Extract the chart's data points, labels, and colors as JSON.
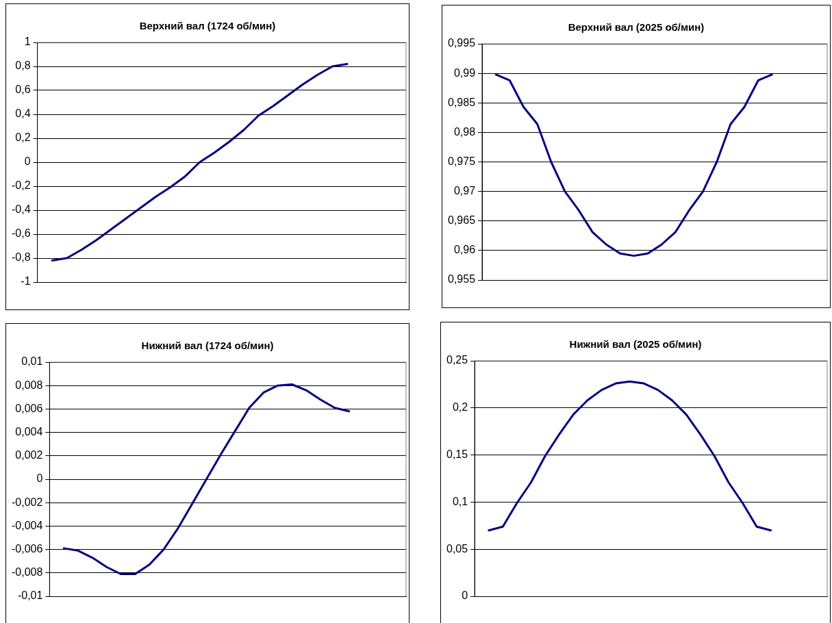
{
  "chart_data": [
    {
      "type": "line",
      "title": "Верхний вал (1724 об/мин)",
      "categories": [
        null,
        null,
        null,
        null,
        null,
        null,
        null,
        null,
        null,
        null,
        null,
        null,
        null,
        null,
        null,
        null,
        null,
        null,
        null,
        null,
        null,
        null,
        null,
        null,
        null,
        null
      ],
      "series": [
        {
          "color": "#000080",
          "values": [
            null,
            -0.82,
            -0.8,
            -0.73,
            -0.65,
            -0.56,
            -0.47,
            -0.38,
            -0.29,
            -0.21,
            -0.12,
            0.0,
            0.08,
            0.17,
            0.27,
            0.39,
            0.47,
            0.56,
            0.65,
            0.73,
            0.8,
            0.82,
            null,
            null,
            null,
            null
          ]
        }
      ],
      "ylim": [
        -1,
        1
      ],
      "yticks": [
        -1,
        {
          "value": -0.8,
          "label": "-0,8"
        },
        {
          "value": -0.6,
          "label": "-0,6"
        },
        {
          "value": -0.4,
          "label": "-0,4"
        },
        {
          "value": -0.2,
          "label": "-0,2"
        },
        0,
        {
          "value": 0.2,
          "label": "0,2"
        },
        {
          "value": 0.4,
          "label": "0,4"
        },
        {
          "value": 0.6,
          "label": "0,6"
        },
        {
          "value": 0.8,
          "label": "0,8"
        },
        1
      ],
      "grid": "y",
      "legend": false,
      "tick_labels": "y",
      "marker": "none",
      "line_style": "solid"
    },
    {
      "type": "line",
      "title": "Верхний вал (2025 об/мин)",
      "categories": [
        null,
        null,
        null,
        null,
        null,
        null,
        null,
        null,
        null,
        null,
        null,
        null,
        null,
        null,
        null,
        null,
        null,
        null,
        null,
        null,
        null,
        null,
        null,
        null,
        null,
        null
      ],
      "series": [
        {
          "color": "#000080",
          "values": [
            null,
            0.9898,
            0.9888,
            0.9843,
            0.9814,
            0.975,
            0.97,
            0.9668,
            0.9631,
            0.961,
            0.9595,
            0.9591,
            0.9595,
            0.961,
            0.9631,
            0.9668,
            0.97,
            0.975,
            0.9814,
            0.9843,
            0.9888,
            0.9898,
            null,
            null,
            null,
            null
          ]
        }
      ],
      "ylim": [
        0.955,
        0.995
      ],
      "yticks": [
        {
          "value": 0.955,
          "label": "0,955"
        },
        {
          "value": 0.96,
          "label": "0,96"
        },
        {
          "value": 0.965,
          "label": "0,965"
        },
        {
          "value": 0.97,
          "label": "0,97"
        },
        {
          "value": 0.975,
          "label": "0,975"
        },
        {
          "value": 0.98,
          "label": "0,98"
        },
        {
          "value": 0.985,
          "label": "0,985"
        },
        {
          "value": 0.99,
          "label": "0,99"
        },
        {
          "value": 0.995,
          "label": "0,995"
        }
      ],
      "grid": "y",
      "legend": false,
      "tick_labels": "y",
      "marker": "none",
      "line_style": "solid"
    },
    {
      "type": "line",
      "title": "Нижний вал (1724 об/мин)",
      "categories": [
        null,
        null,
        null,
        null,
        null,
        null,
        null,
        null,
        null,
        null,
        null,
        null,
        null,
        null,
        null,
        null,
        null,
        null,
        null,
        null,
        null,
        null,
        null,
        null,
        null,
        null
      ],
      "series": [
        {
          "color": "#000080",
          "values": [
            null,
            -0.0059,
            -0.0061,
            -0.0067,
            -0.0075,
            -0.0081,
            -0.0081,
            -0.0073,
            -0.006,
            -0.0042,
            -0.0021,
            0.0,
            0.0021,
            0.0041,
            0.0061,
            0.0074,
            0.008,
            0.0081,
            0.0076,
            0.0068,
            0.0061,
            0.0058,
            null,
            null,
            null,
            null
          ]
        }
      ],
      "ylim": [
        -0.01,
        0.01
      ],
      "yticks": [
        {
          "value": -0.01,
          "label": "-0,01"
        },
        {
          "value": -0.008,
          "label": "-0,008"
        },
        {
          "value": -0.006,
          "label": "-0,006"
        },
        {
          "value": -0.004,
          "label": "-0,004"
        },
        {
          "value": -0.002,
          "label": "-0,002"
        },
        0,
        {
          "value": 0.002,
          "label": "0,002"
        },
        {
          "value": 0.004,
          "label": "0,004"
        },
        {
          "value": 0.006,
          "label": "0,006"
        },
        {
          "value": 0.008,
          "label": "0,008"
        },
        {
          "value": 0.01,
          "label": "0,01"
        }
      ],
      "grid": "y",
      "legend": false,
      "tick_labels": "y",
      "marker": "none",
      "line_style": "solid"
    },
    {
      "type": "line",
      "title": "Нижний вал (2025 об/мин)",
      "categories": [
        null,
        null,
        null,
        null,
        null,
        null,
        null,
        null,
        null,
        null,
        null,
        null,
        null,
        null,
        null,
        null,
        null,
        null,
        null,
        null,
        null,
        null,
        null,
        null,
        null,
        null
      ],
      "series": [
        {
          "color": "#000080",
          "values": [
            null,
            0.07,
            0.074,
            0.099,
            0.121,
            0.149,
            0.172,
            0.193,
            0.208,
            0.219,
            0.226,
            0.228,
            0.226,
            0.219,
            0.208,
            0.193,
            0.172,
            0.149,
            0.121,
            0.099,
            0.074,
            0.07,
            null,
            null,
            null,
            null
          ]
        }
      ],
      "ylim": [
        0,
        0.25
      ],
      "yticks": [
        0,
        {
          "value": 0.05,
          "label": "0,05"
        },
        {
          "value": 0.1,
          "label": "0,1"
        },
        {
          "value": 0.15,
          "label": "0,15"
        },
        {
          "value": 0.2,
          "label": "0,2"
        },
        {
          "value": 0.25,
          "label": "0,25"
        }
      ],
      "grid": "y",
      "legend": false,
      "tick_labels": "y",
      "marker": "none",
      "line_style": "solid"
    }
  ]
}
